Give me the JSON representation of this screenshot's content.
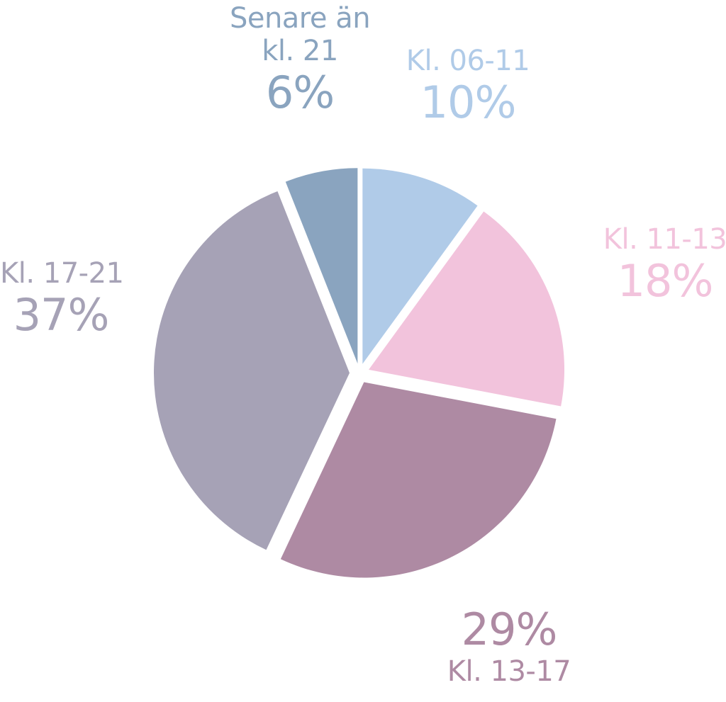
{
  "chart_data": {
    "type": "pie",
    "title": "",
    "slices": [
      {
        "label": "Kl. 06-11",
        "value": 10,
        "value_label": "10%",
        "color": "#b0cbe8"
      },
      {
        "label": "Kl. 11-13",
        "value": 18,
        "value_label": "18%",
        "color": "#f2c3dc"
      },
      {
        "label": "Kl. 13-17",
        "value": 29,
        "value_label": "29%",
        "color": "#ae8aa3"
      },
      {
        "label": "Kl. 17-21",
        "value": 37,
        "value_label": "37%",
        "color": "#a6a2b6"
      },
      {
        "label_line1": "Senare än",
        "label_line2": "kl. 21",
        "value": 6,
        "value_label": "6%",
        "color": "#8aa4bf"
      }
    ],
    "legend": "none"
  }
}
